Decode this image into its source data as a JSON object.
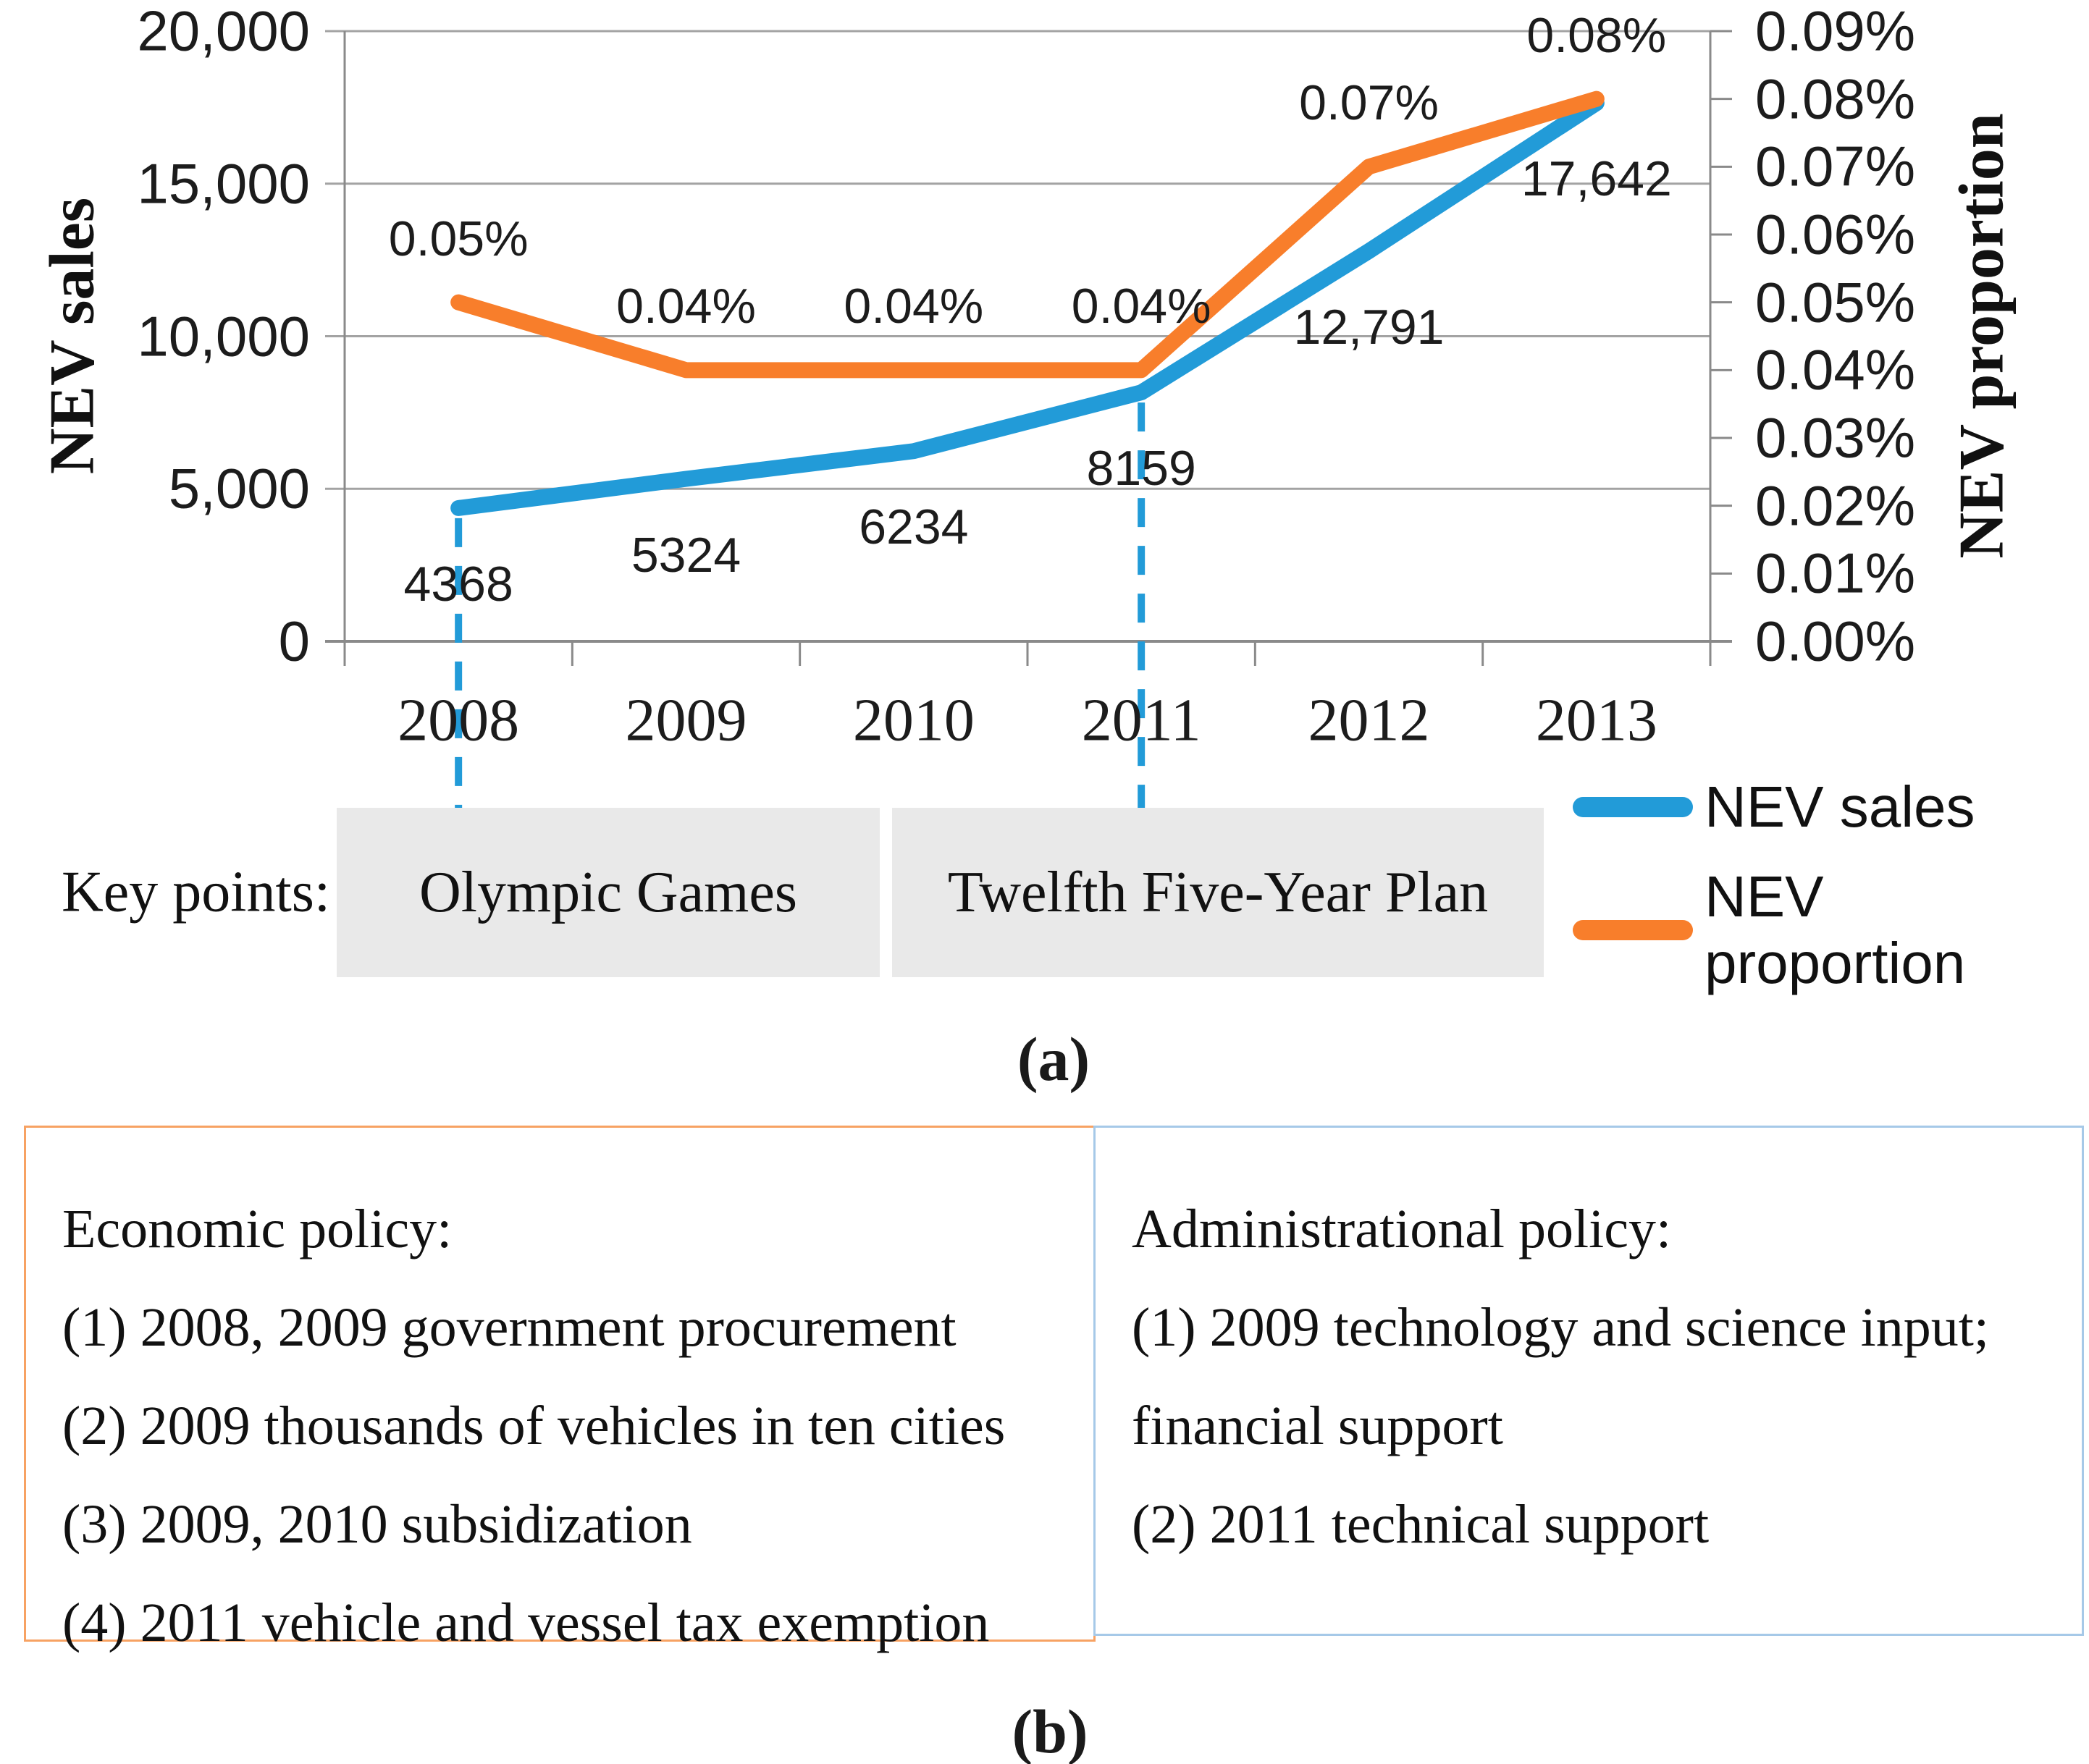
{
  "figure": {
    "panel_a_label": "(a)",
    "panel_b_label": "(b)"
  },
  "chart_data": {
    "type": "line",
    "title": "",
    "categories": [
      "2008",
      "2009",
      "2010",
      "2011",
      "2012",
      "2013"
    ],
    "series": [
      {
        "name": "NEV sales",
        "axis": "left",
        "color": "#229bd8",
        "values": [
          4368,
          5324,
          6234,
          8159,
          12791,
          17642
        ],
        "point_labels": [
          "4368",
          "5324",
          "6234",
          "8159",
          "12,791",
          "17,642"
        ],
        "label_position": "below"
      },
      {
        "name": "NEV proportion",
        "axis": "right",
        "color": "#f87e2b",
        "values": [
          0.05,
          0.04,
          0.04,
          0.04,
          0.07,
          0.08
        ],
        "point_labels": [
          "0.05%",
          "0.04%",
          "0.04%",
          "0.04%",
          "0.07%",
          "0.08%"
        ],
        "label_position": "above"
      }
    ],
    "left_axis": {
      "title": "NEV sales",
      "min": 0,
      "max": 20000,
      "tick_interval": 5000,
      "tick_labels": [
        "0",
        "5,000",
        "10,000",
        "15,000",
        "20,000"
      ]
    },
    "right_axis": {
      "title": "NEV proportion",
      "min": 0,
      "max": 0.09,
      "tick_interval": 0.01,
      "tick_labels": [
        "0.00%",
        "0.01%",
        "0.02%",
        "0.03%",
        "0.04%",
        "0.05%",
        "0.06%",
        "0.07%",
        "0.08%",
        "0.09%"
      ]
    },
    "grid": true,
    "legend_position": "right",
    "key_points": {
      "label": "Key points:",
      "items": [
        {
          "year": "2008",
          "text": "Olympic Games"
        },
        {
          "year": "2011",
          "text": "Twelfth Five-Year Plan"
        }
      ]
    }
  },
  "legend": {
    "items": [
      {
        "label": "NEV sales",
        "color": "#229bd8"
      },
      {
        "label": "NEV proportion",
        "color": "#f87e2b"
      }
    ]
  },
  "panel_b": {
    "economic": {
      "title": "Economic policy:",
      "border_color": "#f7a263",
      "items": [
        "(1) 2008, 2009 government procurement",
        "(2) 2009 thousands of vehicles in ten cities",
        "(3) 2009, 2010 subsidization",
        "(4) 2011 vehicle and vessel tax exemption"
      ]
    },
    "administrational": {
      "title": "Administrational policy:",
      "border_color": "#a6c9e8",
      "items": [
        "(1) 2009 technology and science input;",
        "financial support",
        "(2) 2011 technical support"
      ]
    }
  },
  "style": {
    "gridline_color": "#a3a3a3",
    "axis_color": "#8a8a8a",
    "key_point_line_color": "#229bd8"
  }
}
